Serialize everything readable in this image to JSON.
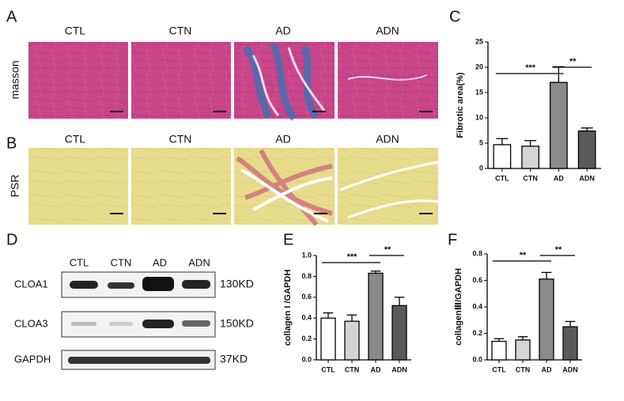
{
  "panel_labels": [
    "A",
    "B",
    "C",
    "D",
    "E",
    "F"
  ],
  "histology": {
    "columns": [
      "CTL",
      "CTN",
      "AD",
      "ADN"
    ],
    "rows": [
      "masson",
      "PSR"
    ]
  },
  "blot": {
    "lanes": [
      "CTL",
      "CTN",
      "AD",
      "ADN"
    ],
    "proteins": [
      "CLOA1",
      "CLOA3",
      "GAPDH"
    ],
    "sizes": [
      "130KD",
      "150KD",
      "37KD"
    ]
  },
  "chart_data": [
    {
      "type": "bar",
      "y_label": "Fibrotic area(%)",
      "categories": [
        "CTL",
        "CTN",
        "AD",
        "ADN"
      ],
      "values": [
        4.7,
        4.4,
        17,
        7.4
      ],
      "errors": [
        1.2,
        1.1,
        3.1,
        0.6
      ],
      "colors": [
        "#ffffff",
        "#d4d4d4",
        "#8a8a8a",
        "#5a5a5a"
      ],
      "ylim": [
        0,
        25
      ],
      "yticks": [
        0,
        5,
        10,
        15,
        20,
        25
      ],
      "annotations": [
        "***",
        "**"
      ]
    },
    {
      "type": "bar",
      "y_label": "collagen I /GAPDH",
      "categories": [
        "CTL",
        "CTN",
        "AD",
        "ADN"
      ],
      "values": [
        0.4,
        0.37,
        0.83,
        0.52
      ],
      "errors": [
        0.05,
        0.06,
        0.02,
        0.08
      ],
      "colors": [
        "#ffffff",
        "#d4d4d4",
        "#8a8a8a",
        "#5a5a5a"
      ],
      "ylim": [
        0,
        1
      ],
      "yticks": [
        {
          "value": 0,
          "label": "0.0"
        },
        {
          "value": 0.2,
          "label": "0.2"
        },
        {
          "value": 0.4,
          "label": "0.4"
        },
        {
          "value": 0.6,
          "label": "0.6"
        },
        {
          "value": 0.8,
          "label": "0.8"
        },
        {
          "value": 1,
          "label": "1.0"
        }
      ],
      "annotations": [
        "***",
        "**"
      ]
    },
    {
      "type": "bar",
      "y_label": "collagenⅢ/GAPDH",
      "categories": [
        "CTL",
        "CTN",
        "AD",
        "ADN"
      ],
      "values": [
        0.14,
        0.15,
        0.61,
        0.25
      ],
      "errors": [
        0.02,
        0.025,
        0.05,
        0.04
      ],
      "colors": [
        "#ffffff",
        "#d4d4d4",
        "#8a8a8a",
        "#5a5a5a"
      ],
      "ylim": [
        0,
        0.8
      ],
      "yticks": [
        {
          "value": 0,
          "label": "0.0"
        },
        {
          "value": 0.2,
          "label": "0.2"
        },
        {
          "value": 0.4,
          "label": "0.4"
        },
        {
          "value": 0.6,
          "label": "0.6"
        },
        {
          "value": 0.8,
          "label": "0.8"
        }
      ],
      "annotations": [
        "**",
        "**"
      ]
    }
  ]
}
